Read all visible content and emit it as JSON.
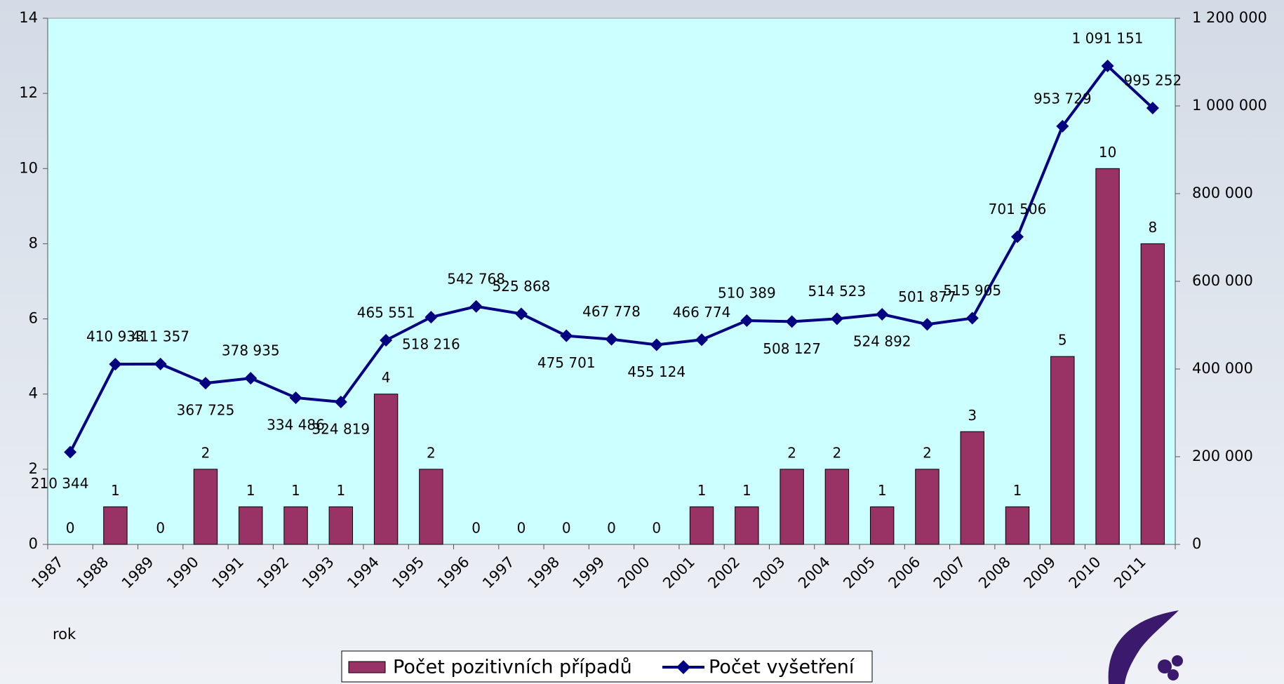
{
  "chart_data": {
    "type": "bar-line",
    "x_label": "rok",
    "categories": [
      "1987",
      "1988",
      "1989",
      "1990",
      "1991",
      "1992",
      "1993",
      "1994",
      "1995",
      "1996",
      "1997",
      "1998",
      "1999",
      "2000",
      "2001",
      "2002",
      "2003",
      "2004",
      "2005",
      "2006",
      "2007",
      "2008",
      "2009",
      "2010",
      "2011"
    ],
    "series": [
      {
        "name": "Počet pozitivních případů",
        "type": "bar",
        "color": "#993366",
        "values": [
          0,
          1,
          0,
          2,
          1,
          1,
          1,
          4,
          2,
          0,
          0,
          0,
          0,
          0,
          1,
          1,
          2,
          2,
          1,
          2,
          3,
          1,
          5,
          10,
          8
        ]
      },
      {
        "name": "Počet vyšetření",
        "type": "line",
        "axis": "y2",
        "color": "#000080",
        "values": [
          210344,
          410933,
          411357,
          367725,
          378935,
          334486,
          324819,
          465551,
          518216,
          542768,
          525868,
          475701,
          467778,
          455124,
          466774,
          510389,
          508127,
          514523,
          524892,
          501877,
          515905,
          701506,
          953729,
          1091151,
          995252
        ],
        "value_labels": [
          "210 344",
          "410 933",
          "411 357",
          "367 725",
          "378 935",
          "334 486",
          "324 819",
          "465 551",
          "518 216",
          "542 768",
          "525 868",
          "475 701",
          "467 778",
          "455 124",
          "466 774",
          "510 389",
          "508 127",
          "514 523",
          "524 892",
          "501 877",
          "515 905",
          "701 506",
          "953 729",
          "1 091 151",
          "995 252"
        ]
      }
    ],
    "ylim": [
      0,
      14
    ],
    "yticks": [
      0,
      2,
      4,
      6,
      8,
      10,
      12,
      14
    ],
    "y2lim": [
      0,
      1200000
    ],
    "y2ticks": [
      0,
      {
        "value": 200000,
        "label": "200 000"
      },
      {
        "value": 400000,
        "label": "400 000"
      },
      {
        "value": 600000,
        "label": "600 000"
      },
      {
        "value": 800000,
        "label": "800 000"
      },
      {
        "value": 1000000,
        "label": "1 000 000"
      },
      {
        "value": 1200000,
        "label": "1 200 000"
      }
    ],
    "legend": "bottom"
  }
}
